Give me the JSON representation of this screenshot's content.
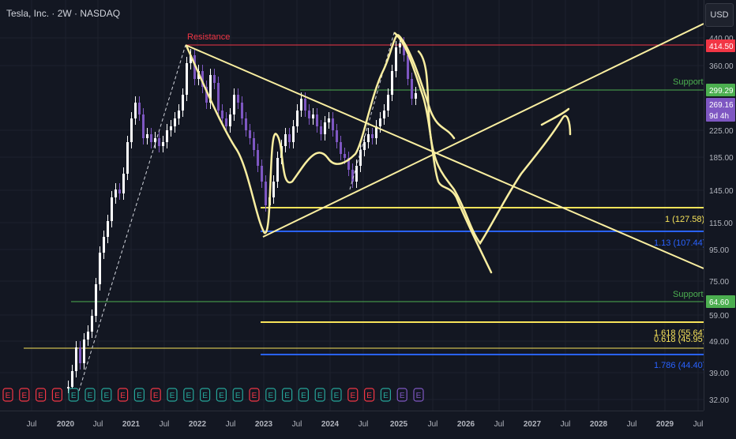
{
  "header": {
    "title": "Tesla, Inc. · 2W · NASDAQ"
  },
  "price_axis": {
    "currency": "USD",
    "ticks": [
      "440.00",
      "360.00",
      "225.00",
      "185.00",
      "145.00",
      "115.00",
      "95.00",
      "75.00",
      "59.00",
      "49.00",
      "39.00",
      "32.00"
    ],
    "badges": [
      {
        "label": "414.50",
        "color": "#f23645"
      },
      {
        "label": "299.29",
        "color": "#4caf50"
      },
      {
        "label": "269.16",
        "color": "#7e57c2"
      },
      {
        "label": "9d 4h",
        "color": "#7e57c2"
      },
      {
        "label": "64.60",
        "color": "#4caf50"
      }
    ]
  },
  "time_axis": {
    "labels": [
      "Jul",
      "2020",
      "Jul",
      "2021",
      "Jul",
      "2022",
      "Jul",
      "2023",
      "Jul",
      "2024",
      "Jul",
      "2025",
      "Jul",
      "2026",
      "Jul",
      "2027",
      "Jul",
      "2028",
      "Jul",
      "2029",
      "Jul"
    ]
  },
  "annotations": {
    "resistance": "Resistance",
    "support_top": "Support",
    "support_bottom": "Support",
    "fib_1": "1 (127.58)",
    "fib_113": "1.13 (107.44)",
    "fib_1618": "1.618 (55.64)",
    "fib_0618": "0.618 (45.95)",
    "fib_1786": "1.786 (44.40)"
  },
  "colors": {
    "background": "#131722",
    "candle_up": "#ffffff",
    "candle_down": "#7e57c2",
    "resistance": "#f23645",
    "support": "#4caf50",
    "fib_yellow": "#f7e35a",
    "fib_blue": "#2962ff",
    "drawing": "#f9eea0"
  },
  "earnings_markers": [
    "E",
    "E",
    "E",
    "E",
    "E",
    "E",
    "E",
    "E",
    "E",
    "E",
    "E",
    "E",
    "E",
    "E",
    "E",
    "E",
    "E",
    "E",
    "E",
    "E",
    "E",
    "E",
    "E",
    "E",
    "E",
    "E"
  ]
}
